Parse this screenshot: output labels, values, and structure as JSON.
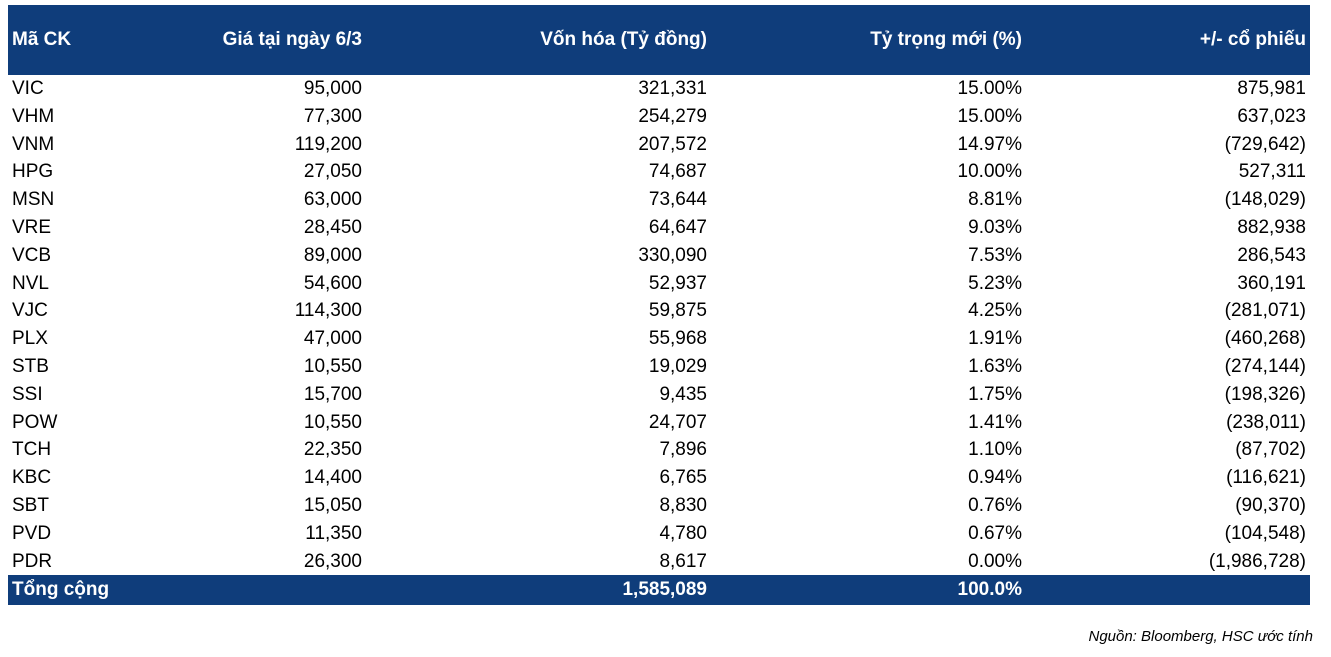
{
  "table": {
    "headers": [
      "Mã CK",
      "Giá tại ngày 6/3",
      "Vốn hóa (Tỷ đồng)",
      "Tỷ trọng mới (%)",
      "+/- cổ phiếu"
    ],
    "rows": [
      [
        "VIC",
        "95,000",
        "321,331",
        "15.00%",
        "875,981"
      ],
      [
        "VHM",
        "77,300",
        "254,279",
        "15.00%",
        "637,023"
      ],
      [
        "VNM",
        "119,200",
        "207,572",
        "14.97%",
        "(729,642)"
      ],
      [
        "HPG",
        "27,050",
        "74,687",
        "10.00%",
        "527,311"
      ],
      [
        "MSN",
        "63,000",
        "73,644",
        "8.81%",
        "(148,029)"
      ],
      [
        "VRE",
        "28,450",
        "64,647",
        "9.03%",
        "882,938"
      ],
      [
        "VCB",
        "89,000",
        "330,090",
        "7.53%",
        "286,543"
      ],
      [
        "NVL",
        "54,600",
        "52,937",
        "5.23%",
        "360,191"
      ],
      [
        "VJC",
        "114,300",
        "59,875",
        "4.25%",
        "(281,071)"
      ],
      [
        "PLX",
        "47,000",
        "55,968",
        "1.91%",
        "(460,268)"
      ],
      [
        "STB",
        "10,550",
        "19,029",
        "1.63%",
        "(274,144)"
      ],
      [
        "SSI",
        "15,700",
        "9,435",
        "1.75%",
        "(198,326)"
      ],
      [
        "POW",
        "10,550",
        "24,707",
        "1.41%",
        "(238,011)"
      ],
      [
        "TCH",
        "22,350",
        "7,896",
        "1.10%",
        "(87,702)"
      ],
      [
        "KBC",
        "14,400",
        "6,765",
        "0.94%",
        "(116,621)"
      ],
      [
        "SBT",
        "15,050",
        "8,830",
        "0.76%",
        "(90,370)"
      ],
      [
        "PVD",
        "11,350",
        "4,780",
        "0.67%",
        "(104,548)"
      ],
      [
        "PDR",
        "26,300",
        "8,617",
        "0.00%",
        "(1,986,728)"
      ]
    ],
    "total": [
      "Tổng cộng",
      "",
      "1,585,089",
      "100.0%",
      ""
    ]
  },
  "source": "Nguồn: Bloomberg, HSC ước tính",
  "colors": {
    "header_bg": "#0f3d7b",
    "header_text": "#ffffff"
  }
}
